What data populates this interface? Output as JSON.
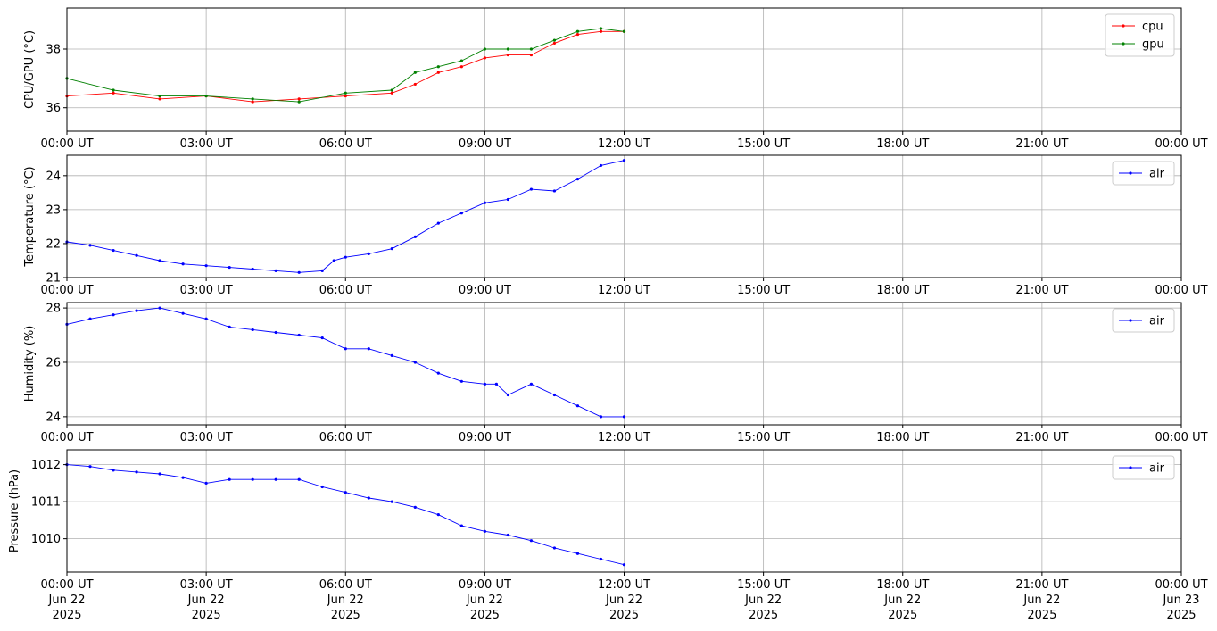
{
  "chart_data": {
    "type": "line",
    "time_axis": {
      "xlim": [
        "2025-06-22T00:00:00Z",
        "2025-06-23T00:00:00Z"
      ],
      "ticks": [
        "2025-06-22T00:00:00Z",
        "2025-06-22T03:00:00Z",
        "2025-06-22T06:00:00Z",
        "2025-06-22T09:00:00Z",
        "2025-06-22T12:00:00Z",
        "2025-06-22T15:00:00Z",
        "2025-06-22T18:00:00Z",
        "2025-06-22T21:00:00Z",
        "2025-06-23T00:00:00Z"
      ],
      "tick_labels": [
        "00:00 UT",
        "03:00 UT",
        "06:00 UT",
        "09:00 UT",
        "12:00 UT",
        "15:00 UT",
        "18:00 UT",
        "21:00 UT",
        "00:00 UT"
      ],
      "date_line1": [
        "Jun 22",
        "Jun 22",
        "Jun 22",
        "Jun 22",
        "Jun 22",
        "Jun 22",
        "Jun 22",
        "Jun 22",
        "Jun 23"
      ],
      "date_line2": [
        "2025",
        "2025",
        "2025",
        "2025",
        "2025",
        "2025",
        "2025",
        "2025",
        "2025"
      ]
    },
    "panels": [
      {
        "ylabel": "CPU/GPU (°C)",
        "ylim": [
          35.2,
          39.4
        ],
        "yticks": [
          36,
          38
        ],
        "grid": true,
        "legend": "upper right",
        "series": [
          {
            "name": "cpu",
            "color": "#ff0000",
            "x": [
              "2025-06-22T00:00:00Z",
              "2025-06-22T01:00:00Z",
              "2025-06-22T02:00:00Z",
              "2025-06-22T03:00:00Z",
              "2025-06-22T04:00:00Z",
              "2025-06-22T05:00:00Z",
              "2025-06-22T06:00:00Z",
              "2025-06-22T07:00:00Z",
              "2025-06-22T07:30:00Z",
              "2025-06-22T08:00:00Z",
              "2025-06-22T08:30:00Z",
              "2025-06-22T09:00:00Z",
              "2025-06-22T09:30:00Z",
              "2025-06-22T10:00:00Z",
              "2025-06-22T10:30:00Z",
              "2025-06-22T11:00:00Z",
              "2025-06-22T11:30:00Z",
              "2025-06-22T12:00:00Z"
            ],
            "y": [
              36.4,
              36.5,
              36.3,
              36.4,
              36.2,
              36.3,
              36.4,
              36.5,
              36.8,
              37.2,
              37.4,
              37.7,
              37.8,
              37.8,
              38.2,
              38.5,
              38.6,
              38.6
            ]
          },
          {
            "name": "gpu",
            "color": "#008000",
            "x": [
              "2025-06-22T00:00:00Z",
              "2025-06-22T01:00:00Z",
              "2025-06-22T02:00:00Z",
              "2025-06-22T03:00:00Z",
              "2025-06-22T04:00:00Z",
              "2025-06-22T05:00:00Z",
              "2025-06-22T06:00:00Z",
              "2025-06-22T07:00:00Z",
              "2025-06-22T07:30:00Z",
              "2025-06-22T08:00:00Z",
              "2025-06-22T08:30:00Z",
              "2025-06-22T09:00:00Z",
              "2025-06-22T09:30:00Z",
              "2025-06-22T10:00:00Z",
              "2025-06-22T10:30:00Z",
              "2025-06-22T11:00:00Z",
              "2025-06-22T11:30:00Z",
              "2025-06-22T12:00:00Z"
            ],
            "y": [
              37.0,
              36.6,
              36.4,
              36.4,
              36.3,
              36.2,
              36.5,
              36.6,
              37.2,
              37.4,
              37.6,
              38.0,
              38.0,
              38.0,
              38.3,
              38.6,
              38.7,
              38.6
            ]
          }
        ]
      },
      {
        "ylabel": "Temperature (°C)",
        "ylim": [
          21.0,
          24.6
        ],
        "yticks": [
          21,
          22,
          23,
          24
        ],
        "grid": true,
        "legend": "upper right",
        "series": [
          {
            "name": "air",
            "color": "#0000ff",
            "x": [
              "2025-06-22T00:00:00Z",
              "2025-06-22T00:30:00Z",
              "2025-06-22T01:00:00Z",
              "2025-06-22T01:30:00Z",
              "2025-06-22T02:00:00Z",
              "2025-06-22T02:30:00Z",
              "2025-06-22T03:00:00Z",
              "2025-06-22T03:30:00Z",
              "2025-06-22T04:00:00Z",
              "2025-06-22T04:30:00Z",
              "2025-06-22T05:00:00Z",
              "2025-06-22T05:30:00Z",
              "2025-06-22T05:45:00Z",
              "2025-06-22T06:00:00Z",
              "2025-06-22T06:30:00Z",
              "2025-06-22T07:00:00Z",
              "2025-06-22T07:30:00Z",
              "2025-06-22T08:00:00Z",
              "2025-06-22T08:30:00Z",
              "2025-06-22T09:00:00Z",
              "2025-06-22T09:30:00Z",
              "2025-06-22T10:00:00Z",
              "2025-06-22T10:30:00Z",
              "2025-06-22T11:00:00Z",
              "2025-06-22T11:30:00Z",
              "2025-06-22T12:00:00Z"
            ],
            "y": [
              22.05,
              21.95,
              21.8,
              21.65,
              21.5,
              21.4,
              21.35,
              21.3,
              21.25,
              21.2,
              21.15,
              21.2,
              21.5,
              21.6,
              21.7,
              21.85,
              22.2,
              22.6,
              22.9,
              23.2,
              23.3,
              23.6,
              23.55,
              23.9,
              24.3,
              24.45
            ]
          }
        ]
      },
      {
        "ylabel": "Humidity (%)",
        "ylim": [
          23.7,
          28.2
        ],
        "yticks": [
          24,
          26,
          28
        ],
        "grid": true,
        "legend": "upper right",
        "series": [
          {
            "name": "air",
            "color": "#0000ff",
            "x": [
              "2025-06-22T00:00:00Z",
              "2025-06-22T00:30:00Z",
              "2025-06-22T01:00:00Z",
              "2025-06-22T01:30:00Z",
              "2025-06-22T02:00:00Z",
              "2025-06-22T02:30:00Z",
              "2025-06-22T03:00:00Z",
              "2025-06-22T03:30:00Z",
              "2025-06-22T04:00:00Z",
              "2025-06-22T04:30:00Z",
              "2025-06-22T05:00:00Z",
              "2025-06-22T05:30:00Z",
              "2025-06-22T06:00:00Z",
              "2025-06-22T06:30:00Z",
              "2025-06-22T07:00:00Z",
              "2025-06-22T07:30:00Z",
              "2025-06-22T08:00:00Z",
              "2025-06-22T08:30:00Z",
              "2025-06-22T09:00:00Z",
              "2025-06-22T09:15:00Z",
              "2025-06-22T09:30:00Z",
              "2025-06-22T10:00:00Z",
              "2025-06-22T10:30:00Z",
              "2025-06-22T11:00:00Z",
              "2025-06-22T11:30:00Z",
              "2025-06-22T12:00:00Z"
            ],
            "y": [
              27.4,
              27.6,
              27.75,
              27.9,
              28.0,
              27.8,
              27.6,
              27.3,
              27.2,
              27.1,
              27.0,
              26.9,
              26.5,
              26.5,
              26.25,
              26.0,
              25.6,
              25.3,
              25.2,
              25.2,
              24.8,
              25.2,
              24.8,
              24.4,
              24.0,
              24.0
            ]
          }
        ]
      },
      {
        "ylabel": "Pressure (hPa)",
        "ylim": [
          1009.1,
          1012.4
        ],
        "yticks": [
          1010,
          1011,
          1012
        ],
        "grid": true,
        "legend": "upper right",
        "series": [
          {
            "name": "air",
            "color": "#0000ff",
            "x": [
              "2025-06-22T00:00:00Z",
              "2025-06-22T00:30:00Z",
              "2025-06-22T01:00:00Z",
              "2025-06-22T01:30:00Z",
              "2025-06-22T02:00:00Z",
              "2025-06-22T02:30:00Z",
              "2025-06-22T03:00:00Z",
              "2025-06-22T03:30:00Z",
              "2025-06-22T04:00:00Z",
              "2025-06-22T04:30:00Z",
              "2025-06-22T05:00:00Z",
              "2025-06-22T05:30:00Z",
              "2025-06-22T06:00:00Z",
              "2025-06-22T06:30:00Z",
              "2025-06-22T07:00:00Z",
              "2025-06-22T07:30:00Z",
              "2025-06-22T08:00:00Z",
              "2025-06-22T08:30:00Z",
              "2025-06-22T09:00:00Z",
              "2025-06-22T09:30:00Z",
              "2025-06-22T10:00:00Z",
              "2025-06-22T10:30:00Z",
              "2025-06-22T11:00:00Z",
              "2025-06-22T11:30:00Z",
              "2025-06-22T12:00:00Z"
            ],
            "y": [
              1012.0,
              1011.95,
              1011.85,
              1011.8,
              1011.75,
              1011.65,
              1011.5,
              1011.6,
              1011.6,
              1011.6,
              1011.6,
              1011.4,
              1011.25,
              1011.1,
              1011.0,
              1010.85,
              1010.65,
              1010.35,
              1010.2,
              1010.1,
              1009.95,
              1009.75,
              1009.6,
              1009.45,
              1009.3
            ]
          }
        ]
      }
    ]
  }
}
